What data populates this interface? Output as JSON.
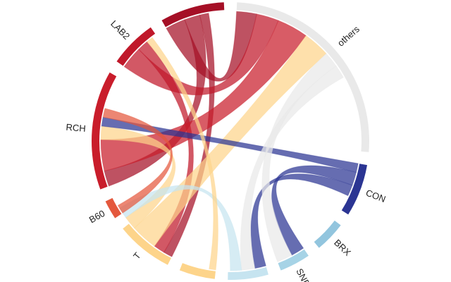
{
  "chart_data": {
    "type": "chord",
    "categories": [
      "others",
      "CON",
      "BRX",
      "SNPO",
      null,
      null,
      "T",
      "B60",
      "RCH",
      "LAB2",
      null
    ],
    "colors": [
      "#e9e9e9",
      "#2b3593",
      "#92c5de",
      "#a6d3e6",
      "#c6e4f0",
      "#fdd48a",
      "#fdd48a",
      "#e4583d",
      "#c91d2b",
      "#c0182a",
      "#a50f26"
    ],
    "values": [
      92,
      22,
      13,
      13,
      17,
      15,
      24,
      8,
      50,
      20,
      27
    ],
    "links": [
      {
        "source": 10,
        "target": 0,
        "value": 9
      },
      {
        "source": 10,
        "target": 8,
        "value": 7
      },
      {
        "source": 10,
        "target": 6,
        "value": 4
      },
      {
        "source": 9,
        "target": 0,
        "value": 10
      },
      {
        "source": 9,
        "target": 6,
        "value": 5
      },
      {
        "source": 8,
        "target": 0,
        "value": 14
      },
      {
        "source": 6,
        "target": 0,
        "value": 12
      },
      {
        "source": 6,
        "target": 8,
        "value": 6
      },
      {
        "source": 1,
        "target": 8,
        "value": 4
      },
      {
        "source": 1,
        "target": 3,
        "value": 6
      },
      {
        "source": 1,
        "target": 4,
        "value": 5
      },
      {
        "source": 0,
        "target": 3,
        "value": 7
      },
      {
        "source": 0,
        "target": 4,
        "value": 6
      },
      {
        "source": 4,
        "target": 6,
        "value": 5
      },
      {
        "source": 7,
        "target": 8,
        "value": 4
      },
      {
        "source": 5,
        "target": 9,
        "value": 3
      }
    ]
  }
}
